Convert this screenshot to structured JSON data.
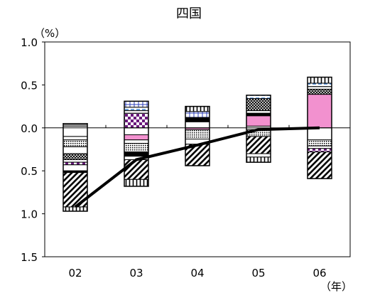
{
  "chart_data": {
    "type": "bar",
    "subtype": "stacked-bar-with-line",
    "title": "四国",
    "y_unit": "（%）",
    "x_unit": "（年）",
    "categories": [
      "02",
      "03",
      "04",
      "05",
      "06"
    ],
    "y_tick_labels": [
      "1.0",
      "0.5",
      "0.0",
      "0.5",
      "1.0",
      "1.5"
    ],
    "ylim": [
      -1.5,
      1.0
    ],
    "y_ticks": [
      1.0,
      0.5,
      0.0,
      -0.5,
      -1.0,
      -1.5
    ],
    "grid": false,
    "legend": "none",
    "line": {
      "x": [
        "02",
        "03",
        "04",
        "05",
        "06"
      ],
      "values": [
        -0.92,
        -0.37,
        -0.2,
        -0.02,
        0.0
      ]
    },
    "stacks": [
      {
        "category": "02",
        "top": 0.05,
        "bottom": -0.97,
        "segments": [
          {
            "pattern": "hatch-h",
            "from": 0.05,
            "to": 0.02
          },
          {
            "pattern": "white",
            "from": 0.02,
            "to": -0.1
          },
          {
            "pattern": "white",
            "from": -0.1,
            "to": -0.14
          },
          {
            "pattern": "dots",
            "from": -0.14,
            "to": -0.22
          },
          {
            "pattern": "white",
            "from": -0.22,
            "to": -0.3
          },
          {
            "pattern": "cross",
            "from": -0.3,
            "to": -0.37
          },
          {
            "pattern": "white",
            "from": -0.37,
            "to": -0.4
          },
          {
            "pattern": "purple",
            "from": -0.4,
            "to": -0.43
          },
          {
            "pattern": "white",
            "from": -0.43,
            "to": -0.5
          },
          {
            "pattern": "solid",
            "from": -0.5,
            "to": -0.52
          },
          {
            "pattern": "diag",
            "from": -0.52,
            "to": -0.92
          },
          {
            "pattern": "grid",
            "from": -0.92,
            "to": -0.97
          }
        ]
      },
      {
        "category": "03",
        "top": 0.31,
        "bottom": -0.68,
        "segments": [
          {
            "pattern": "blue-grid",
            "from": 0.31,
            "to": 0.24
          },
          {
            "pattern": "blue-dash",
            "from": 0.24,
            "to": 0.2
          },
          {
            "pattern": "white",
            "from": 0.2,
            "to": 0.17
          },
          {
            "pattern": "purple",
            "from": 0.17,
            "to": 0.0
          },
          {
            "pattern": "white",
            "from": 0.0,
            "to": -0.08
          },
          {
            "pattern": "pink",
            "from": -0.08,
            "to": -0.14
          },
          {
            "pattern": "white",
            "from": -0.14,
            "to": -0.18
          },
          {
            "pattern": "dots",
            "from": -0.18,
            "to": -0.28
          },
          {
            "pattern": "solid",
            "from": -0.28,
            "to": -0.33
          },
          {
            "pattern": "white",
            "from": -0.33,
            "to": -0.37
          },
          {
            "pattern": "diag",
            "from": -0.37,
            "to": -0.6
          },
          {
            "pattern": "grid",
            "from": -0.6,
            "to": -0.68
          }
        ]
      },
      {
        "category": "04",
        "top": 0.25,
        "bottom": -0.44,
        "segments": [
          {
            "pattern": "grid",
            "from": 0.25,
            "to": 0.19
          },
          {
            "pattern": "blue-grid",
            "from": 0.19,
            "to": 0.12
          },
          {
            "pattern": "solid",
            "from": 0.12,
            "to": 0.07
          },
          {
            "pattern": "white",
            "from": 0.07,
            "to": 0.0
          },
          {
            "pattern": "pink",
            "from": 0.0,
            "to": -0.02
          },
          {
            "pattern": "dots",
            "from": -0.02,
            "to": -0.13
          },
          {
            "pattern": "white",
            "from": -0.13,
            "to": -0.19
          },
          {
            "pattern": "diag",
            "from": -0.19,
            "to": -0.44
          }
        ]
      },
      {
        "category": "05",
        "top": 0.38,
        "bottom": -0.4,
        "segments": [
          {
            "pattern": "blue-dash",
            "from": 0.38,
            "to": 0.34
          },
          {
            "pattern": "cross",
            "from": 0.34,
            "to": 0.2
          },
          {
            "pattern": "white",
            "from": 0.2,
            "to": 0.17
          },
          {
            "pattern": "solid",
            "from": 0.17,
            "to": 0.14
          },
          {
            "pattern": "pink",
            "from": 0.14,
            "to": 0.02
          },
          {
            "pattern": "white",
            "from": 0.02,
            "to": -0.02
          },
          {
            "pattern": "dots",
            "from": -0.02,
            "to": -0.1
          },
          {
            "pattern": "diag",
            "from": -0.1,
            "to": -0.3
          },
          {
            "pattern": "white",
            "from": -0.3,
            "to": -0.34
          },
          {
            "pattern": "grid",
            "from": -0.34,
            "to": -0.4
          }
        ]
      },
      {
        "category": "06",
        "top": 0.59,
        "bottom": -0.59,
        "segments": [
          {
            "pattern": "grid",
            "from": 0.59,
            "to": 0.52
          },
          {
            "pattern": "blue-dash",
            "from": 0.52,
            "to": 0.48
          },
          {
            "pattern": "white",
            "from": 0.48,
            "to": 0.45
          },
          {
            "pattern": "cross",
            "from": 0.45,
            "to": 0.39
          },
          {
            "pattern": "pink",
            "from": 0.39,
            "to": 0.0
          },
          {
            "pattern": "white",
            "from": 0.0,
            "to": -0.14
          },
          {
            "pattern": "dots",
            "from": -0.14,
            "to": -0.21
          },
          {
            "pattern": "white",
            "from": -0.21,
            "to": -0.24
          },
          {
            "pattern": "purple",
            "from": -0.24,
            "to": -0.28
          },
          {
            "pattern": "diag",
            "from": -0.28,
            "to": -0.59
          }
        ]
      }
    ]
  }
}
